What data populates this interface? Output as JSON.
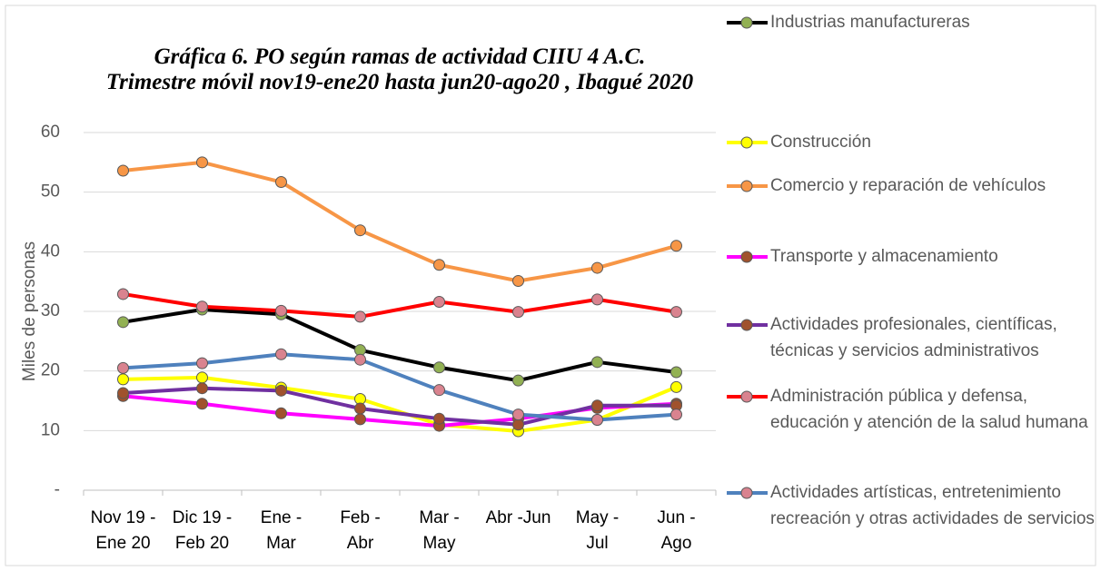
{
  "chart_data": {
    "type": "line",
    "title": "Gráfica 6. PO según ramas de actividad CIIU 4 A.C.",
    "subtitle": "Trimestre móvil  nov19-ene20 hasta jun20-ago20 , Ibagué 2020",
    "y_label": "Miles de personas",
    "categories": [
      "Nov 19 -\nEne 20",
      "Dic 19 -\nFeb 20",
      "Ene -\nMar",
      "Feb -\nAbr",
      "Mar -\nMay",
      "Abr -Jun",
      "May -\nJul",
      "Jun -\nAgo"
    ],
    "ylim": [
      0,
      60
    ],
    "yticks": [
      {
        "value": 0,
        "label": "-"
      },
      10,
      20,
      30,
      40,
      50,
      60
    ],
    "grid": true,
    "legend": "right",
    "series": [
      {
        "name": "Industrias manufactureras",
        "color": "#000000",
        "marker_color": "#92b153",
        "values": [
          28.2,
          30.3,
          29.5,
          23.5,
          20.6,
          18.4,
          21.5,
          19.8
        ]
      },
      {
        "name": "Construcción",
        "color": "#ffff00",
        "marker_color": "#ffff00",
        "values": [
          18.6,
          18.9,
          17.2,
          15.3,
          11,
          9.9,
          11.8,
          17.3
        ]
      },
      {
        "name": "Comercio y reparación de vehículos",
        "color": "#f79646",
        "marker_color": "#f79646",
        "values": [
          53.6,
          55,
          51.7,
          43.6,
          37.8,
          35.1,
          37.3,
          41
        ]
      },
      {
        "name": "Transporte y almacenamiento",
        "color": "#ff00ff",
        "marker_color": "#a0522d",
        "values": [
          15.8,
          14.5,
          12.9,
          11.9,
          10.8,
          12,
          13.8,
          14.5
        ]
      },
      {
        "name": "Actividades profesionales, científicas, técnicas y servicios administrativos",
        "color": "#7030a0",
        "marker_color": "#a0522d",
        "values": [
          16.3,
          17.1,
          16.7,
          13.7,
          12,
          11,
          14.2,
          14.2
        ]
      },
      {
        "name": "Administración pública y defensa, educación y atención de la salud humana",
        "color": "#ff0000",
        "marker_color": "#d9838f",
        "values": [
          32.9,
          30.8,
          30.1,
          29.1,
          31.6,
          29.9,
          32,
          29.9
        ]
      },
      {
        "name": "Actividades artísticas, entretenimiento recreación y otras actividades de servicios",
        "color": "#4f81bd",
        "marker_color": "#d9838f",
        "values": [
          20.5,
          21.3,
          22.8,
          21.9,
          16.8,
          12.7,
          11.8,
          12.7
        ]
      }
    ]
  }
}
